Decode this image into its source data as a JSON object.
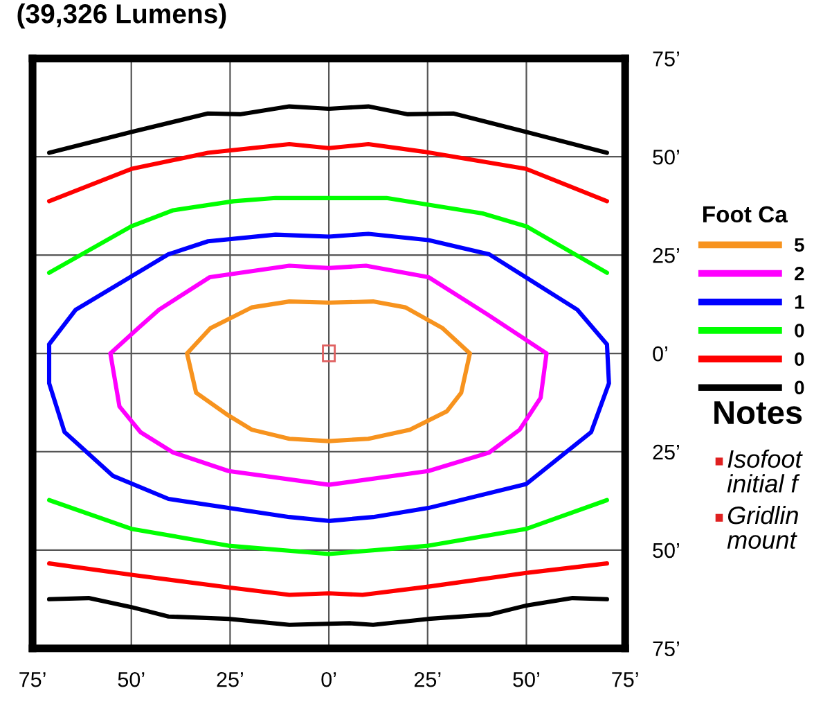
{
  "chart_data": {
    "type": "line",
    "title": "(39,326 Lumens)",
    "xlim": [
      -75,
      75
    ],
    "ylim": [
      -75,
      75
    ],
    "xticks": [
      {
        "value": -75,
        "label": "75’"
      },
      {
        "value": -50,
        "label": "50’"
      },
      {
        "value": -25,
        "label": "25’"
      },
      {
        "value": 0,
        "label": "0’"
      },
      {
        "value": 25,
        "label": "25’"
      },
      {
        "value": 50,
        "label": "50’"
      },
      {
        "value": 75,
        "label": "75’"
      }
    ],
    "yticks": [
      {
        "value": -75,
        "label": "75’"
      },
      {
        "value": -50,
        "label": "50’"
      },
      {
        "value": -25,
        "label": "25’"
      },
      {
        "value": 0,
        "label": "0’"
      },
      {
        "value": 25,
        "label": "25’"
      },
      {
        "value": 50,
        "label": "50’"
      },
      {
        "value": 75,
        "label": "75’"
      }
    ],
    "grid": true,
    "legend": "right",
    "legend_title": "Foot Ca",
    "marker": "none",
    "line_style": "solid",
    "series": [
      {
        "name": "5",
        "color": "#f7931e",
        "x": [
          -35.9,
          -30.0,
          -19.5,
          -10,
          0,
          11.2,
          19.4,
          28.8,
          35.7,
          null,
          -35.9,
          -33.6,
          -25.4,
          -19.5,
          -10,
          0,
          10,
          20.5,
          29.9,
          33.5,
          35.7
        ],
        "values": [
          0,
          6.4,
          11.7,
          13.2,
          12.9,
          13.2,
          11.7,
          6.4,
          0,
          null,
          0,
          -10.0,
          -15.8,
          -19.4,
          -21.7,
          -22.3,
          -21.7,
          -19.4,
          -14.7,
          -10.0,
          0
        ]
      },
      {
        "name": "2",
        "color": "#ff00ff",
        "x": [
          -55.3,
          -48.3,
          -43.0,
          -30.1,
          -10,
          0,
          9.4,
          25.2,
          40.0,
          55.1,
          null,
          -55.3,
          -53.0,
          -47.7,
          -39.4,
          -25.4,
          0,
          25.2,
          40.6,
          48.3,
          53.6,
          55.1
        ],
        "values": [
          0,
          6.4,
          11.1,
          19.4,
          22.3,
          21.7,
          22.3,
          19.4,
          10.0,
          0,
          null,
          0,
          -13.5,
          -20.0,
          -25.2,
          -29.9,
          -33.4,
          -29.9,
          -25.2,
          -19.4,
          -11.3,
          0
        ]
      },
      {
        "name": "1",
        "color": "#0000ff",
        "x": [
          -70.8,
          -64.1,
          -40.6,
          -30.6,
          -13.5,
          0,
          10,
          25.2,
          40.6,
          62.9,
          70.4,
          70.9,
          null,
          -70.8,
          -70.8,
          -66.9,
          -54.7,
          -40.6,
          -25.4,
          -10,
          0,
          11.2,
          25.2,
          50,
          66.4,
          70.9
        ],
        "values": [
          2.3,
          11.1,
          25.2,
          28.5,
          30.2,
          29.7,
          30.4,
          28.8,
          25.2,
          11.1,
          2.3,
          -7.6,
          null,
          2.3,
          -7.6,
          -20.0,
          -31.1,
          -37.0,
          -39.3,
          -41.6,
          -42.6,
          -41.6,
          -39.3,
          -33.2,
          -20.0,
          -7.6
        ]
      },
      {
        "name": "0",
        "color": "#00ff00",
        "x": [
          -70.8,
          -50,
          -39.4,
          -24.1,
          -13.5,
          0,
          14.6,
          38.9,
          50,
          70.4,
          null,
          -70.8,
          -50,
          -25.4,
          0,
          25.2,
          50,
          70.4
        ],
        "values": [
          20.5,
          32.3,
          36.4,
          38.7,
          39.5,
          39.5,
          39.5,
          35.6,
          32.3,
          20.5,
          null,
          -37.3,
          -44.6,
          -48.9,
          -51.0,
          -48.9,
          -44.6,
          -37.3
        ]
      },
      {
        "name": "0",
        "color": "#ff0000",
        "x": [
          -70.8,
          -50,
          -30.6,
          -10,
          0,
          10,
          23.9,
          50,
          70.4,
          null,
          -70.8,
          -50,
          -25.4,
          -10,
          0,
          8.5,
          25.2,
          50,
          70.4
        ],
        "values": [
          38.7,
          46.9,
          51.0,
          53.2,
          52.2,
          53.2,
          51.3,
          46.9,
          38.7,
          null,
          -53.4,
          -56.3,
          -59.5,
          -61.4,
          -61.0,
          -61.4,
          -59.3,
          -55.8,
          -53.4
        ]
      },
      {
        "name": "0",
        "color": "#000000",
        "x": [
          -70.8,
          -50,
          -30.6,
          -22.5,
          -10,
          0,
          10,
          20,
          31.5,
          50,
          70.4,
          null,
          -70.8,
          -60.8,
          -50,
          -40.6,
          -25.4,
          -10,
          5.3,
          11.2,
          25.2,
          40.6,
          50,
          61.7,
          70.4
        ],
        "values": [
          51.0,
          56.3,
          61.0,
          60.8,
          62.8,
          62.2,
          62.8,
          60.8,
          61.0,
          56.3,
          51.0,
          null,
          -62.5,
          -62.2,
          -64.5,
          -66.9,
          -67.5,
          -69.0,
          -68.6,
          -69.0,
          -67.5,
          -66.4,
          -64.1,
          -62.2,
          -62.5
        ]
      }
    ],
    "annotations": [
      "Notes",
      "Isofoot",
      "initial f",
      "Gridlin",
      "mount"
    ]
  }
}
